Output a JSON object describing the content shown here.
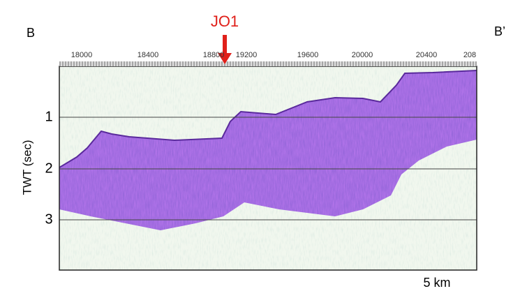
{
  "section": {
    "left_label": "B",
    "right_label": "B’",
    "well": "JO1",
    "top_ticks": [
      "18000",
      "18400",
      "18800",
      "19200",
      "19600",
      "20000",
      "20400",
      "208"
    ],
    "y_axis_label": "TWT (sec)",
    "y_ticks": [
      "1",
      "2",
      "3"
    ],
    "scale_label": "5 km"
  }
}
